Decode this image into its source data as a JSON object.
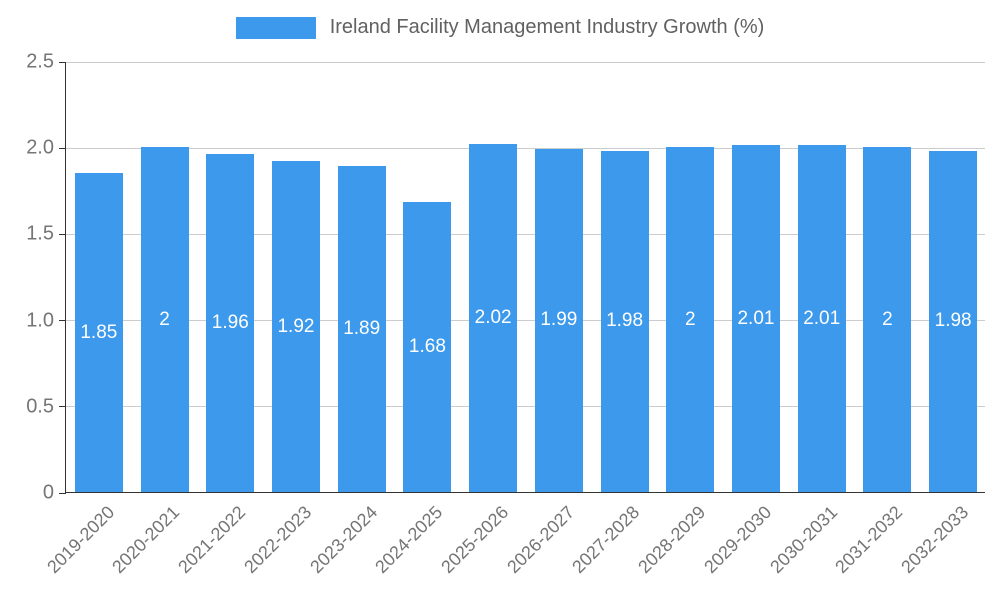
{
  "chart_data": {
    "type": "bar",
    "title": "Ireland Facility Management Industry Growth (%)",
    "categories": [
      "2019-2020",
      "2020-2021",
      "2021-2022",
      "2022-2023",
      "2023-2024",
      "2024-2025",
      "2025-2026",
      "2026-2027",
      "2027-2028",
      "2028-2029",
      "2029-2030",
      "2030-2031",
      "2031-2032",
      "2032-2033"
    ],
    "values": [
      1.85,
      2,
      1.96,
      1.92,
      1.89,
      1.68,
      2.02,
      1.99,
      1.98,
      2,
      2.01,
      2.01,
      2,
      1.98
    ],
    "value_labels": [
      "1.85",
      "2",
      "1.96",
      "1.92",
      "1.89",
      "1.68",
      "2.02",
      "1.99",
      "1.98",
      "2",
      "2.01",
      "2.01",
      "2",
      "1.98"
    ],
    "xlabel": "",
    "ylabel": "",
    "ylim": [
      0,
      2.5
    ],
    "yticks": [
      0,
      0.5,
      1,
      1.5,
      2,
      2.5
    ],
    "ytick_labels": [
      "0",
      "0.5",
      "1.0",
      "1.5",
      "2.0",
      "2.5"
    ],
    "grid": true,
    "legend_position": "top",
    "colors": {
      "bar": "#3d99eb",
      "axis_text": "#757575",
      "gridline": "#cccccc",
      "axis_line": "#333333",
      "value_label": "#ffffff",
      "background": "#ffffff"
    }
  }
}
